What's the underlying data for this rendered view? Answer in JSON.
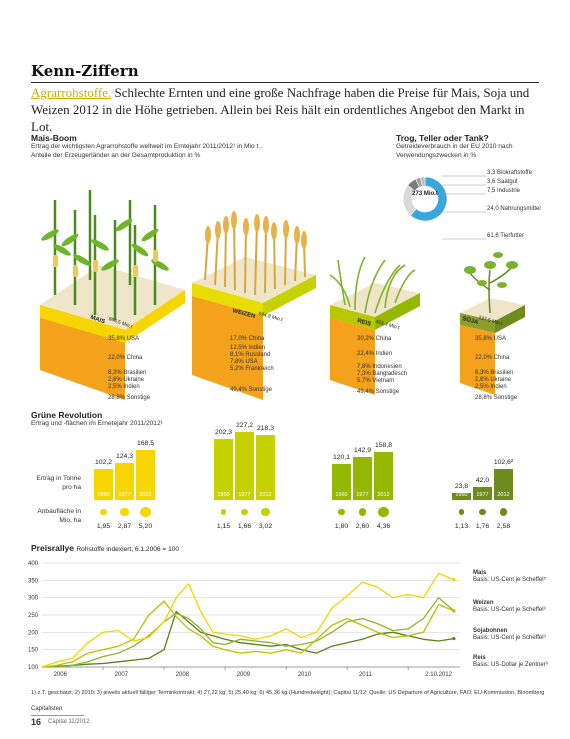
{
  "header": {
    "title": "Kenn-Ziffern",
    "kicker": "Agrarrohstoffe.",
    "intro": " Schlechte Ernten und eine große Nachfrage haben die Preise für Mais, Soja und Weizen 2012 in die Höhe getrieben. Allein bei Reis hält ein ordentliches Angebot den Markt in Lot."
  },
  "colors": {
    "yellow": "#f6d500",
    "lime": "#c6d200",
    "green": "#94b800",
    "olive": "#6e8b1e",
    "orange": "#f4a11b",
    "blue": "#3aa7dc"
  },
  "maisboom": {
    "title": "Mais-Boom",
    "subtitle": "Ertrag der wichtigsten Agrarrohstoffe weltweit im Erntejahr 2011/2012¹ in Mio t , Anteile der Erzeugerländer an der Gesamtproduktion in %",
    "crops": [
      {
        "name": "MAIS",
        "amount": "866,5 Mio.t",
        "shares": [
          "35,8% USA",
          "22,0% China",
          "8,3% Brasilien",
          "2,6% Ukraine",
          "2,5% Indien",
          "28,8% Sonstige"
        ]
      },
      {
        "name": "WEIZEN",
        "amount": "694,8 Mio.t",
        "shares": [
          "17,0% China",
          "12,5% Indien",
          "8,1% Russland",
          "7,8% USA",
          "5,2% Frankreich",
          "49,4% Sonstige"
        ]
      },
      {
        "name": "REIS",
        "amount": "463,4 Mio.t",
        "shares": [
          "30,2% China",
          "22,4% Indien",
          "7,8% Indonesien",
          "7,3% Bangladesch",
          "5,7% Vietnam",
          "49,4% Sonstige"
        ]
      },
      {
        "name": "SOJA",
        "amount": "237,5 Mio.t",
        "shares": [
          "35,8% USA",
          "22,0% China",
          "8,3% Brasilien",
          "2,6% Ukraine",
          "2,5% Indien",
          "28,8% Sonstige"
        ]
      }
    ]
  },
  "trog": {
    "title": "Trog, Teller oder Tank?",
    "subtitle": "Getreideverbrauch in der EU 2010 nach Verwendungszwecken in %",
    "center": "273 Mio.t",
    "items": [
      {
        "value": 3.3,
        "label": "3,3 Biokraftstoffe",
        "color": "#bdbdbd"
      },
      {
        "value": 3.6,
        "label": "3,6 Saatgut",
        "color": "#9d9d9d"
      },
      {
        "value": 7.5,
        "label": "7,5 Industrie",
        "color": "#7d7d7d"
      },
      {
        "value": 24.0,
        "label": "24,0 Nahrungsmittel",
        "color": "#d9d9d9"
      },
      {
        "value": 61.6,
        "label": "61,6 Tierfutter",
        "color": "#3aa7dc"
      }
    ]
  },
  "revolution": {
    "title": "Grüne Revolution",
    "subtitle": "Ertrag und -flächen im Ernetejahr 2011/2012¹",
    "row_yield": "Ertrag in Tonne pro ha",
    "row_area": "Anbaufläche in Mio. ha",
    "years": [
      "1960",
      "1977",
      "2012"
    ]
  },
  "chart_data": [
    {
      "type": "bar",
      "title": "Grüne Revolution",
      "categories": [
        "1960",
        "1977",
        "2012"
      ],
      "series": [
        {
          "name": "Mais",
          "values": [
            102.2,
            124.3,
            168.5
          ],
          "labels": [
            "102,2",
            "124,3",
            "168,5"
          ],
          "area": [
            "1,95",
            "2,87",
            "5,20"
          ],
          "area_values": [
            1.95,
            2.87,
            5.2
          ],
          "color": "#f6d500"
        },
        {
          "name": "Weizen",
          "values": [
            202.3,
            227.2,
            218.3
          ],
          "labels": [
            "202,3",
            "227,2",
            "218,3"
          ],
          "area": [
            "1,15",
            "1,66",
            "3,02"
          ],
          "area_values": [
            1.15,
            1.66,
            3.02
          ],
          "color": "#c6d200"
        },
        {
          "name": "Reis",
          "values": [
            120.1,
            142.9,
            158.8
          ],
          "labels": [
            "120,1",
            "142,9",
            "158,8"
          ],
          "area": [
            "1,80",
            "2,60",
            "4,36"
          ],
          "area_values": [
            1.8,
            2.6,
            4.36
          ],
          "color": "#94b800"
        },
        {
          "name": "Soja",
          "values": [
            23.8,
            42.0,
            102.6
          ],
          "labels": [
            "23,8",
            "42,0",
            "102,6²"
          ],
          "area": [
            "1,13",
            "1,76",
            "2,58"
          ],
          "area_values": [
            1.13,
            1.76,
            2.58
          ],
          "color": "#6e8b1e"
        }
      ]
    },
    {
      "type": "line",
      "title": "Preisrallye",
      "subtitle": "Rohstoffe indexiert, 6.1.2006 = 100",
      "x": [
        2006.0,
        2006.25,
        2006.5,
        2006.75,
        2007.0,
        2007.25,
        2007.5,
        2007.75,
        2008.0,
        2008.2,
        2008.4,
        2008.6,
        2008.8,
        2009.0,
        2009.25,
        2009.5,
        2009.75,
        2010.0,
        2010.25,
        2010.5,
        2010.75,
        2011.0,
        2011.25,
        2011.5,
        2011.75,
        2012.0,
        2012.25,
        2012.5,
        2012.75
      ],
      "x_ticks": [
        "2006",
        "2007",
        "2008",
        "2009",
        "2010",
        "2011",
        "2.10.2012"
      ],
      "x_tick_values": [
        2006.3,
        2007.3,
        2008.3,
        2009.3,
        2010.3,
        2011.3,
        2012.5
      ],
      "ylim": [
        100,
        400
      ],
      "y_ticks": [
        100,
        150,
        200,
        250,
        300,
        350,
        400
      ],
      "series": [
        {
          "name": "Mais",
          "color": "#f2d600",
          "values": [
            100,
            115,
            125,
            170,
            200,
            205,
            175,
            185,
            230,
            300,
            340,
            260,
            200,
            195,
            190,
            180,
            190,
            210,
            185,
            200,
            270,
            305,
            345,
            330,
            300,
            310,
            300,
            370,
            352
          ]
        },
        {
          "name": "Weizen",
          "color": "#b7c200",
          "values": [
            100,
            105,
            115,
            140,
            150,
            160,
            180,
            250,
            290,
            245,
            210,
            190,
            160,
            150,
            140,
            145,
            140,
            150,
            140,
            180,
            220,
            240,
            220,
            200,
            185,
            190,
            200,
            280,
            262
          ]
        },
        {
          "name": "Sojabohnen",
          "color": "#8fb329",
          "values": [
            100,
            100,
            105,
            115,
            130,
            140,
            160,
            190,
            230,
            255,
            240,
            210,
            170,
            165,
            180,
            175,
            170,
            160,
            165,
            175,
            200,
            230,
            240,
            225,
            205,
            210,
            240,
            300,
            262
          ]
        },
        {
          "name": "Reis",
          "color": "#5a7f1a",
          "values": [
            100,
            102,
            105,
            108,
            110,
            115,
            120,
            125,
            150,
            260,
            230,
            200,
            190,
            180,
            170,
            165,
            160,
            165,
            150,
            140,
            160,
            170,
            180,
            195,
            200,
            190,
            180,
            175,
            182
          ]
        }
      ],
      "legend": [
        {
          "name": "Mais",
          "unit": "Basis: US-Cent je Scheffel⁵"
        },
        {
          "name": "Weizen",
          "unit": "Basis: US-Cent je Scheffel³"
        },
        {
          "name": "Sojabohnen",
          "unit": "Basis: US-Cent je Scheffel³"
        },
        {
          "name": "Reis",
          "unit": "Basis: US-Dollar je Zentner⁶"
        }
      ]
    }
  ],
  "footer": {
    "notes": "1) z.T. geschätzt; 2) 2010; 3) jeweils aktuell fälliger Terminkontrakt; 4) 27,22 kg; 5) 25,40 kg; 6) 45,36 kg (Hundredweight); Capital 11/12; Quelle: US Departure of Agriculture, FAO, EU-Kommission, Bloomberg",
    "magazine": "Capitalisten",
    "page": "16",
    "issue": "Capital 11/2012"
  }
}
